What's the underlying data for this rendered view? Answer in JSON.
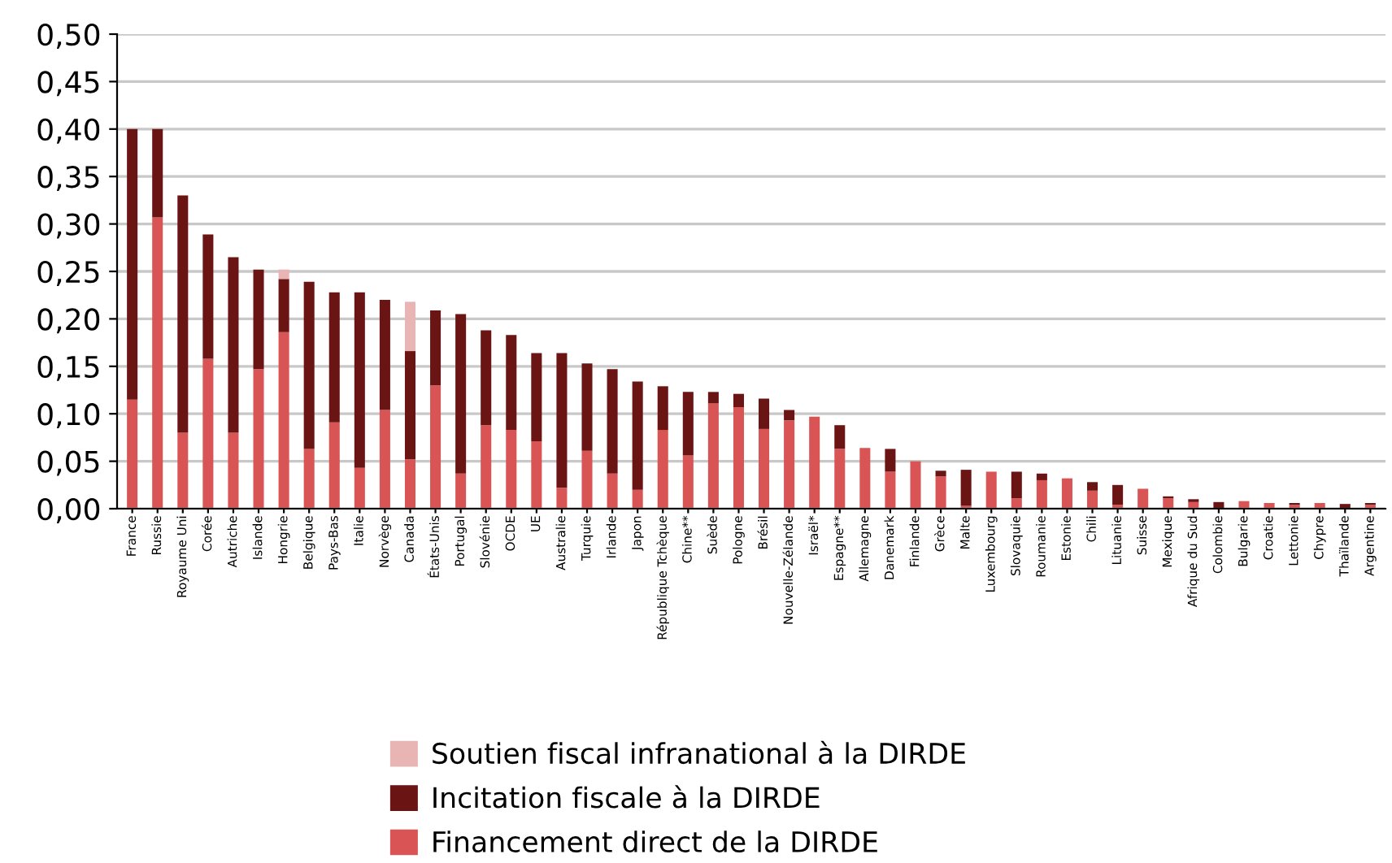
{
  "chart_data": {
    "type": "bar",
    "stacked": true,
    "grid": "y",
    "legend": "bottom",
    "categories": [
      "France",
      "Russie",
      "Royaume Uni",
      "Corée",
      "Autriche",
      "Islande",
      "Hongrie",
      "Belgique",
      "Pays-Bas",
      "Italie",
      "Norvège",
      "Canada",
      "États-Unis",
      "Portugal",
      "Slovénie",
      "OCDE",
      "UE",
      "Australie",
      "Turquie",
      "Irlande",
      "Japon",
      "République Tchèque",
      "Chine**",
      "Suède",
      "Pologne",
      "Brésil",
      "Nouvelle-Zélande",
      "Israël*",
      "Espagne**",
      "Allemagne",
      "Danemark",
      "Finlande",
      "Grèce",
      "Malte",
      "Luxembourg",
      "Slovaquie",
      "Roumanie",
      "Estonie",
      "Chili",
      "Lituanie",
      "Suisse",
      "Mexique",
      "Afrique du Sud",
      "Colombie",
      "Bulgarie",
      "Croatie",
      "Lettonie",
      "Chypre",
      "Thaïlande",
      "Argentine"
    ],
    "ylim": [
      0,
      0.5
    ],
    "yticks": [
      {
        "value": 0,
        "label": "0,00"
      },
      {
        "value": 0.05,
        "label": "0,05"
      },
      {
        "value": 0.1,
        "label": "0,10"
      },
      {
        "value": 0.15,
        "label": "0,15"
      },
      {
        "value": 0.2,
        "label": "0,20"
      },
      {
        "value": 0.25,
        "label": "0,25"
      },
      {
        "value": 0.3,
        "label": "0,30"
      },
      {
        "value": 0.35,
        "label": "0,35"
      },
      {
        "value": 0.4,
        "label": "0,40"
      },
      {
        "value": 0.45,
        "label": "0,45"
      },
      {
        "value": 0.5,
        "label": "0,50"
      }
    ],
    "series": [
      {
        "name": "Financement direct de la DIRDE",
        "color": "#d95455",
        "values": [
          0.115,
          0.307,
          0.08,
          0.158,
          0.08,
          0.147,
          0.186,
          0.063,
          0.091,
          0.043,
          0.104,
          0.052,
          0.13,
          0.037,
          0.088,
          0.083,
          0.071,
          0.022,
          0.061,
          0.037,
          0.02,
          0.083,
          0.056,
          0.111,
          0.107,
          0.084,
          0.093,
          0.097,
          0.063,
          0.064,
          0.039,
          0.05,
          0.034,
          0.003,
          0.039,
          0.011,
          0.03,
          0.032,
          0.019,
          0.004,
          0.021,
          0.011,
          0.007,
          null,
          0.008,
          0.006,
          0.004,
          0.006,
          null,
          0.004
        ]
      },
      {
        "name": "Incitation fiscale à la DIRDE",
        "color": "#6b1414",
        "values": [
          0.285,
          0.093,
          0.25,
          0.131,
          0.185,
          0.105,
          0.056,
          0.176,
          0.137,
          0.185,
          0.116,
          0.114,
          0.079,
          0.168,
          0.1,
          0.1,
          0.093,
          0.142,
          0.092,
          0.11,
          0.114,
          0.046,
          0.067,
          0.012,
          0.014,
          0.032,
          0.011,
          0,
          0.025,
          0,
          0.024,
          0,
          0.006,
          0.038,
          0,
          0.028,
          0.007,
          0,
          0.009,
          0.021,
          0,
          0.002,
          0.003,
          0.007,
          0,
          0,
          0.002,
          0,
          0.005,
          0.002
        ]
      },
      {
        "name": "Soutien fiscal infranational à la DIRDE",
        "color": "#e8b4b4",
        "values": [
          0,
          0,
          0,
          0,
          0,
          0,
          0.01,
          0,
          0,
          0,
          0,
          0.052,
          0,
          0,
          0,
          0,
          0,
          0,
          0,
          0,
          0,
          0,
          0,
          0,
          0,
          0,
          0,
          0,
          0,
          0,
          0,
          0,
          0,
          0,
          0,
          0,
          0,
          0,
          0,
          0,
          0,
          0,
          0,
          0,
          0,
          0,
          0,
          0,
          0,
          0
        ]
      }
    ]
  }
}
